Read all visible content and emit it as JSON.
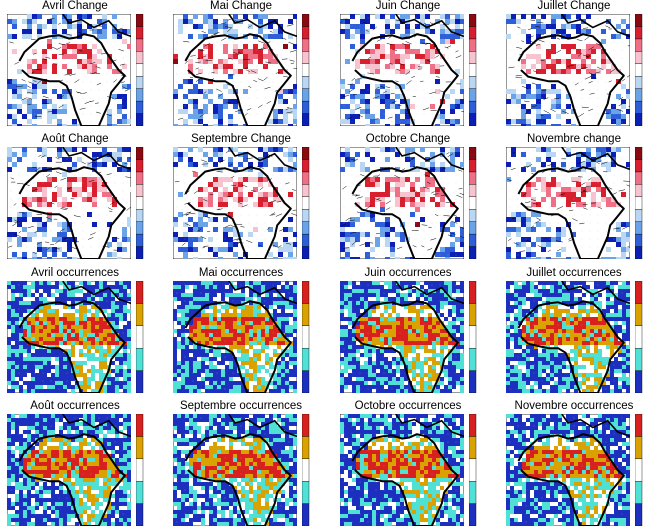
{
  "panels": [
    {
      "title": "Avril Change",
      "kind": "change"
    },
    {
      "title": "Mai Change",
      "kind": "change"
    },
    {
      "title": "Juin Change",
      "kind": "change"
    },
    {
      "title": "Juillet Change",
      "kind": "change"
    },
    {
      "title": "Août Change",
      "kind": "change"
    },
    {
      "title": "Septembre Change",
      "kind": "change"
    },
    {
      "title": "Octobre Change",
      "kind": "change"
    },
    {
      "title": "Novembre change",
      "kind": "change"
    },
    {
      "title": "Avril occurrences",
      "kind": "occurrence"
    },
    {
      "title": "Mai occurrences",
      "kind": "occurrence"
    },
    {
      "title": "Juin occurrences",
      "kind": "occurrence"
    },
    {
      "title": "Juillet occurrences",
      "kind": "occurrence"
    },
    {
      "title": "Août occurrences",
      "kind": "occurrence"
    },
    {
      "title": "Septembre occurrences",
      "kind": "occurrence"
    },
    {
      "title": "Octobre occurrences",
      "kind": "occurrence"
    },
    {
      "title": "Novembre occurrences",
      "kind": "occurrence"
    }
  ],
  "colors": {
    "change_scale": [
      "#0b1fb5",
      "#2e5fd8",
      "#6aa3e8",
      "#b9d7f3",
      "#ffffff",
      "#f6c3cf",
      "#ef6f86",
      "#d81f2e",
      "#8a0a12"
    ],
    "occurrence_scale": [
      "#1d2fbf",
      "#4fe0d6",
      "#ffffff",
      "#d9a200",
      "#d8201e"
    ],
    "coast": "#000000",
    "grid": "#bbbbbb"
  }
}
